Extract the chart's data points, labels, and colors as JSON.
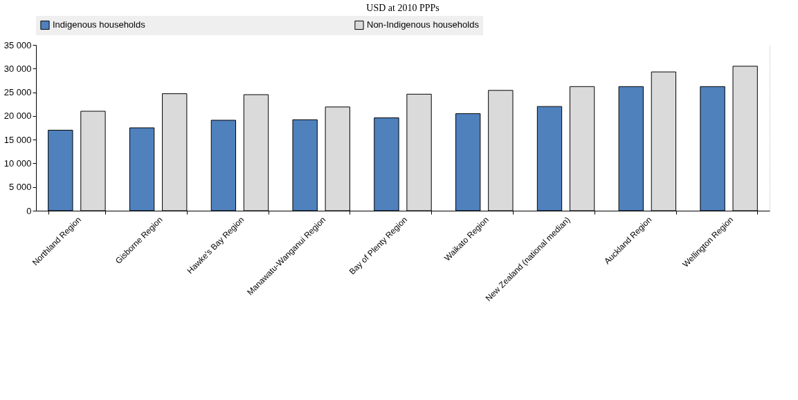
{
  "chart_data": {
    "type": "bar",
    "title": "USD at 2010 PPPs",
    "categories": [
      "Northland Region",
      "Gisborne Region",
      "Hawke's Bay Region",
      "Manawatu-Wanganui Region",
      "Bay of Plenty Region",
      "Waikato Region",
      "New Zealand (national median)",
      "Auckland Region",
      "Wellington Region"
    ],
    "series": [
      {
        "name": "Indigenous households",
        "color": "#4f81bd",
        "values": [
          17000,
          17500,
          19100,
          19200,
          19600,
          20500,
          22000,
          26200,
          26200
        ]
      },
      {
        "name": "Non-Indigenous households",
        "color": "#dadada",
        "values": [
          21000,
          24700,
          24500,
          21900,
          24600,
          25400,
          26200,
          29300,
          30500
        ]
      }
    ],
    "ylim": [
      0,
      35000
    ],
    "yticks": [
      0,
      5000,
      10000,
      15000,
      20000,
      25000,
      30000,
      35000
    ],
    "grid": "y",
    "legend": "top"
  }
}
